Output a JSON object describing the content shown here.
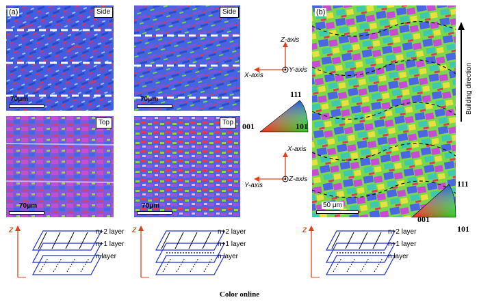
{
  "panel_a": {
    "label": "(a)",
    "side_tag": "Side",
    "top_tag": "Top",
    "scale_side_left": "70μm",
    "scale_side_right": "70μm",
    "scale_top_left": "70μm",
    "scale_top_right": "70μm"
  },
  "panel_b": {
    "label": "(b)",
    "scale": "50 μm",
    "building_direction": "Building direction"
  },
  "axes_upper": {
    "z": "Z-axis",
    "y": "Y-axis",
    "x": "X-axis"
  },
  "axes_lower": {
    "x": "X-axis",
    "z": "Z-axis",
    "y": "Y-axis"
  },
  "ipf_a": {
    "top": "111",
    "left": "001",
    "right": "101"
  },
  "ipf_b": {
    "top": "111",
    "left": "001",
    "right": "101"
  },
  "schematics": [
    {
      "z": "Z",
      "layers": [
        "n+2 layer",
        "n+1 layer",
        "n layer"
      ]
    },
    {
      "z": "Z",
      "layers": [
        "n+2 layer",
        "n+1 layer",
        "n layer"
      ]
    },
    {
      "z": "Z",
      "layers": [
        "n+2 layer",
        "n+1 layer",
        "n layer"
      ]
    }
  ],
  "caption": "Color online",
  "colors": {
    "grain_blue": "#3a5ee0",
    "grain_violet": "#8a5ad8",
    "grain_red": "#e03a5a",
    "grain_green": "#8ee04a",
    "arrow_red": "#e0401a",
    "frame_blue": "#1b2fcf"
  }
}
